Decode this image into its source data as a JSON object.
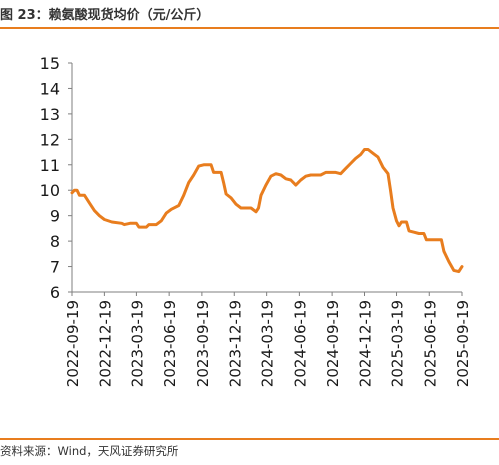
{
  "figure": {
    "title": "图 23：赖氨酸现货均价（元/公斤）",
    "source": "资料来源：Wind，天风证券研究所",
    "accent_color": "#E87D1E",
    "line_color": "#E87D1E",
    "axis_color": "#7f7f7f"
  },
  "chart_data": {
    "type": "line",
    "title": "",
    "xlabel": "",
    "ylabel": "",
    "ylim": [
      6,
      15
    ],
    "yticks": [
      6,
      7,
      8,
      9,
      10,
      11,
      12,
      13,
      14,
      15
    ],
    "xticks": [
      "2022-09-19",
      "2022-12-19",
      "2023-03-19",
      "2023-06-19",
      "2023-09-19",
      "2023-12-19",
      "2024-03-19",
      "2024-06-19",
      "2024-09-19",
      "2024-12-19",
      "2025-03-19",
      "2025-06-19",
      "2025-09-19"
    ],
    "xlim": [
      "2022-09-19",
      "2025-09-19"
    ],
    "grid": false,
    "legend": "none",
    "series": [
      {
        "values": [
          [
            "2022-09-19",
            9.9
          ],
          [
            "2022-09-26",
            10.0
          ],
          [
            "2022-10-03",
            10.0
          ],
          [
            "2022-10-10",
            9.8
          ],
          [
            "2022-10-24",
            9.8
          ],
          [
            "2022-11-07",
            9.5
          ],
          [
            "2022-11-21",
            9.2
          ],
          [
            "2022-12-05",
            9.0
          ],
          [
            "2022-12-19",
            8.85
          ],
          [
            "2023-01-09",
            8.75
          ],
          [
            "2023-02-06",
            8.7
          ],
          [
            "2023-02-13",
            8.65
          ],
          [
            "2023-03-01",
            8.7
          ],
          [
            "2023-03-19",
            8.7
          ],
          [
            "2023-03-26",
            8.55
          ],
          [
            "2023-04-16",
            8.55
          ],
          [
            "2023-04-23",
            8.65
          ],
          [
            "2023-05-14",
            8.65
          ],
          [
            "2023-05-28",
            8.8
          ],
          [
            "2023-06-11",
            9.1
          ],
          [
            "2023-06-25",
            9.25
          ],
          [
            "2023-07-16",
            9.4
          ],
          [
            "2023-07-30",
            9.8
          ],
          [
            "2023-08-13",
            10.3
          ],
          [
            "2023-08-27",
            10.6
          ],
          [
            "2023-09-10",
            10.95
          ],
          [
            "2023-09-24",
            11.0
          ],
          [
            "2023-10-15",
            11.0
          ],
          [
            "2023-10-22",
            10.7
          ],
          [
            "2023-11-12",
            10.7
          ],
          [
            "2023-11-19",
            10.3
          ],
          [
            "2023-11-26",
            9.85
          ],
          [
            "2023-12-10",
            9.7
          ],
          [
            "2023-12-24",
            9.45
          ],
          [
            "2024-01-07",
            9.3
          ],
          [
            "2024-02-04",
            9.3
          ],
          [
            "2024-02-18",
            9.15
          ],
          [
            "2024-02-25",
            9.3
          ],
          [
            "2024-03-03",
            9.8
          ],
          [
            "2024-03-17",
            10.2
          ],
          [
            "2024-03-31",
            10.55
          ],
          [
            "2024-04-14",
            10.65
          ],
          [
            "2024-04-28",
            10.6
          ],
          [
            "2024-05-12",
            10.45
          ],
          [
            "2024-05-26",
            10.4
          ],
          [
            "2024-06-09",
            10.2
          ],
          [
            "2024-06-23",
            10.4
          ],
          [
            "2024-07-07",
            10.55
          ],
          [
            "2024-07-21",
            10.6
          ],
          [
            "2024-08-18",
            10.6
          ],
          [
            "2024-09-01",
            10.7
          ],
          [
            "2024-09-29",
            10.7
          ],
          [
            "2024-10-13",
            10.65
          ],
          [
            "2024-10-27",
            10.85
          ],
          [
            "2024-11-10",
            11.05
          ],
          [
            "2024-11-24",
            11.25
          ],
          [
            "2024-12-08",
            11.4
          ],
          [
            "2024-12-19",
            11.6
          ],
          [
            "2024-12-29",
            11.6
          ],
          [
            "2025-01-12",
            11.45
          ],
          [
            "2025-01-26",
            11.3
          ],
          [
            "2025-02-09",
            10.9
          ],
          [
            "2025-02-23",
            10.65
          ],
          [
            "2025-03-02",
            10.0
          ],
          [
            "2025-03-09",
            9.3
          ],
          [
            "2025-03-19",
            8.8
          ],
          [
            "2025-03-26",
            8.6
          ],
          [
            "2025-04-02",
            8.75
          ],
          [
            "2025-04-16",
            8.75
          ],
          [
            "2025-04-23",
            8.4
          ],
          [
            "2025-05-07",
            8.35
          ],
          [
            "2025-05-21",
            8.3
          ],
          [
            "2025-06-04",
            8.3
          ],
          [
            "2025-06-11",
            8.05
          ],
          [
            "2025-07-02",
            8.05
          ],
          [
            "2025-07-23",
            8.05
          ],
          [
            "2025-07-30",
            7.6
          ],
          [
            "2025-08-13",
            7.2
          ],
          [
            "2025-08-27",
            6.85
          ],
          [
            "2025-09-10",
            6.8
          ],
          [
            "2025-09-19",
            7.0
          ]
        ]
      }
    ]
  }
}
